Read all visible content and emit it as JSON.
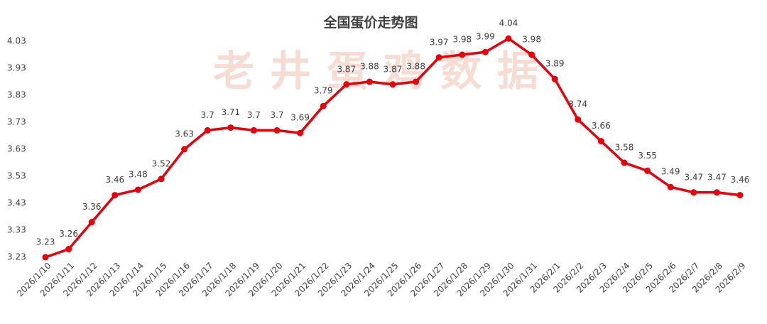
{
  "chart_data": {
    "type": "line",
    "title": "全国蛋价走势图",
    "watermark": "老井蛋鸡数据",
    "categories": [
      "2026/1/10",
      "2026/1/11",
      "2026/1/12",
      "2026/1/13",
      "2026/1/14",
      "2026/1/15",
      "2026/1/16",
      "2026/1/17",
      "2026/1/18",
      "2026/1/19",
      "2026/1/20",
      "2026/1/21",
      "2026/1/22",
      "2026/1/23",
      "2026/1/24",
      "2026/1/25",
      "2026/1/26",
      "2026/1/27",
      "2026/1/28",
      "2026/1/29",
      "2026/1/30",
      "2026/1/31",
      "2026/2/1",
      "2026/2/2",
      "2026/2/3",
      "2026/2/4",
      "2026/2/5",
      "2026/2/6",
      "2026/2/7",
      "2026/2/8",
      "2026/2/9"
    ],
    "values": [
      3.23,
      3.26,
      3.36,
      3.46,
      3.48,
      3.52,
      3.63,
      3.7,
      3.71,
      3.7,
      3.7,
      3.69,
      3.79,
      3.87,
      3.88,
      3.87,
      3.88,
      3.97,
      3.98,
      3.99,
      4.04,
      3.98,
      3.89,
      3.74,
      3.66,
      3.58,
      3.55,
      3.49,
      3.47,
      3.47,
      3.46
    ],
    "color": "#e8000b",
    "ylim": [
      3.23,
      4.03
    ],
    "yticks": [
      3.23,
      3.33,
      3.43,
      3.53,
      3.63,
      3.73,
      3.83,
      3.93,
      4.03
    ],
    "grid": false
  }
}
